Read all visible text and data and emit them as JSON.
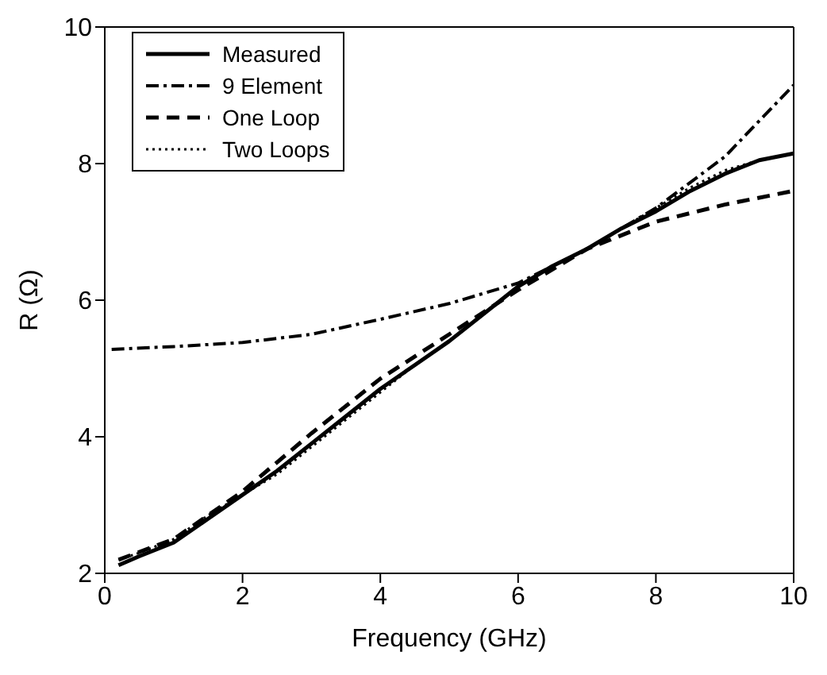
{
  "chart_data": {
    "type": "line",
    "xlabel": "Frequency (GHz)",
    "ylabel": "R (Ω)",
    "xlim": [
      0,
      10
    ],
    "ylim": [
      2,
      10
    ],
    "xticks": [
      0,
      2,
      4,
      6,
      8,
      10
    ],
    "yticks": [
      2,
      4,
      6,
      8,
      10
    ],
    "grid": false,
    "legend": "top left",
    "marker": "none",
    "series": [
      {
        "name": "Measured",
        "color": "#000000",
        "line_style": "solid",
        "x": [
          0.2,
          0.5,
          1,
          1.5,
          2,
          2.5,
          3,
          3.5,
          4,
          4.5,
          5,
          5.5,
          6,
          6.5,
          7,
          7.5,
          8,
          8.5,
          9,
          9.5,
          10
        ],
        "values": [
          2.12,
          2.25,
          2.45,
          2.8,
          3.15,
          3.5,
          3.9,
          4.3,
          4.7,
          5.05,
          5.4,
          5.8,
          6.2,
          6.5,
          6.75,
          7.05,
          7.3,
          7.6,
          7.85,
          8.05,
          8.15
        ]
      },
      {
        "name": "9 Element",
        "color": "#000000",
        "line_style": "dashdot",
        "x": [
          0.1,
          1,
          2,
          3,
          4,
          5,
          6,
          7,
          8,
          9,
          10
        ],
        "values": [
          5.28,
          5.32,
          5.38,
          5.5,
          5.72,
          5.95,
          6.25,
          6.75,
          7.35,
          8.1,
          9.15
        ]
      },
      {
        "name": "One Loop",
        "color": "#000000",
        "line_style": "dashed",
        "x": [
          0.2,
          1,
          2,
          3,
          4,
          5,
          6,
          7,
          8,
          9,
          10
        ],
        "values": [
          2.2,
          2.5,
          3.2,
          4.05,
          4.85,
          5.5,
          6.15,
          6.75,
          7.15,
          7.4,
          7.6
        ]
      },
      {
        "name": "Two Loops",
        "color": "#000000",
        "line_style": "dotted",
        "x": [
          0.2,
          0.5,
          1,
          1.5,
          2,
          2.5,
          3,
          3.5,
          4,
          4.5,
          5,
          5.5,
          6,
          6.5,
          7,
          7.5,
          8,
          8.5,
          9,
          9.5,
          10
        ],
        "values": [
          2.2,
          2.3,
          2.5,
          2.85,
          3.15,
          3.45,
          3.85,
          4.25,
          4.65,
          5.05,
          5.4,
          5.8,
          6.2,
          6.5,
          6.75,
          7.05,
          7.35,
          7.65,
          7.9,
          8.05,
          8.15
        ]
      }
    ]
  }
}
